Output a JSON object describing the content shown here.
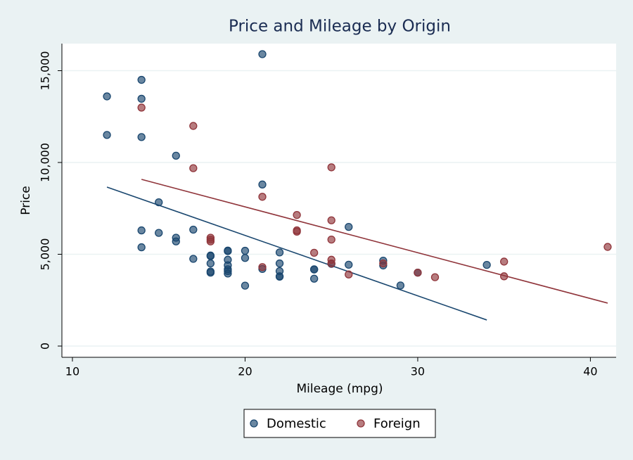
{
  "chart_data": {
    "type": "scatter",
    "title": "Price and Mileage by Origin",
    "xlabel": "Mileage (mpg)",
    "ylabel": "Price",
    "xlim": [
      9.39,
      41.49
    ],
    "ylim": [
      -613,
      16475
    ],
    "xticks": [
      10,
      20,
      30,
      40
    ],
    "yticks": [
      0,
      {
        "value": 5000,
        "label": "5,000"
      },
      {
        "value": 10000,
        "label": "10,000"
      },
      {
        "value": 15000,
        "label": "15,000"
      }
    ],
    "grid": true,
    "legend": "bottom",
    "series": [
      {
        "name": "Domestic",
        "color": "#1a476f",
        "x": [
          12,
          12,
          14,
          14,
          14,
          14,
          14,
          15,
          15,
          16,
          16,
          16,
          17,
          17,
          18,
          18,
          18,
          18,
          18,
          19,
          19,
          19,
          19,
          19,
          19,
          19,
          20,
          20,
          20,
          21,
          21,
          21,
          22,
          22,
          22,
          22,
          22,
          24,
          24,
          24,
          25,
          26,
          26,
          28,
          28,
          29,
          30,
          34
        ],
        "values": [
          13600,
          11500,
          14500,
          13470,
          11385,
          6300,
          5380,
          7830,
          6165,
          10370,
          5900,
          5700,
          6340,
          4750,
          4930,
          4900,
          4500,
          4060,
          4000,
          5200,
          5170,
          4700,
          4400,
          4180,
          4080,
          3950,
          5190,
          4800,
          3290,
          15900,
          8800,
          4200,
          5100,
          4500,
          4080,
          3800,
          3780,
          4170,
          4180,
          3670,
          4480,
          6490,
          4430,
          4650,
          4390,
          3300,
          4000,
          4420
        ]
      },
      {
        "name": "Foreign",
        "color": "#90353b",
        "x": [
          14,
          17,
          17,
          18,
          18,
          18,
          21,
          21,
          23,
          23,
          23,
          24,
          25,
          25,
          25,
          25,
          25,
          26,
          28,
          30,
          31,
          35,
          35,
          41
        ],
        "values": [
          12990,
          11990,
          9690,
          5900,
          5800,
          5700,
          8130,
          4300,
          7140,
          6300,
          6230,
          5080,
          9735,
          6850,
          5800,
          4700,
          4500,
          3900,
          4500,
          4000,
          3750,
          4600,
          3800,
          5400
        ]
      }
    ],
    "fit_lines": [
      {
        "color": "#1a476f",
        "x": [
          12,
          34
        ],
        "values": [
          8660,
          1420
        ]
      },
      {
        "color": "#90353b",
        "x": [
          14,
          41
        ],
        "values": [
          9080,
          2340
        ]
      }
    ]
  }
}
